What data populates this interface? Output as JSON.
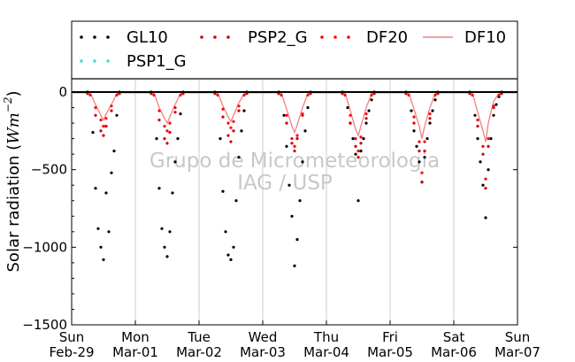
{
  "chart_data": {
    "type": "scatter",
    "title": "",
    "xlabel": "",
    "ylabel": "Solar radiation (Wm⁻²)",
    "ylabel_parts": {
      "prefix": "Solar radiation (",
      "unit_base": "Wm",
      "unit_exp": "−2",
      "suffix": ")"
    },
    "x_domain": [
      "2004-02-29 00:00",
      "2004-03-07 00:00"
    ],
    "ylim": [
      -1500,
      80
    ],
    "yticks": [
      0,
      -500,
      -1000,
      -1500
    ],
    "ytick_labels": [
      "0",
      "−500",
      "−1000",
      "−1500"
    ],
    "xtick_labels": [
      {
        "day": "Sun",
        "date": "Feb-29"
      },
      {
        "day": "Mon",
        "date": "Mar-01"
      },
      {
        "day": "Tue",
        "date": "Mar-02"
      },
      {
        "day": "Wed",
        "date": "Mar-03"
      },
      {
        "day": "Thu",
        "date": "Mar-04"
      },
      {
        "day": "Fri",
        "date": "Mar-05"
      },
      {
        "day": "Sat",
        "date": "Mar-06"
      },
      {
        "day": "Sun",
        "date": "Mar-07"
      }
    ],
    "grid": true,
    "legend_position": "top",
    "watermark": [
      "Grupo de Micrometeorologia",
      "IAG / USP"
    ],
    "series": [
      {
        "name": "GL10",
        "kind": "dots",
        "color": "#000000",
        "values_per_day": 12,
        "points": [
          [
            "2004-02-29 06:00",
            0
          ],
          [
            "2004-02-29 08:00",
            -260
          ],
          [
            "2004-02-29 09:00",
            -620
          ],
          [
            "2004-02-29 10:00",
            -880
          ],
          [
            "2004-02-29 11:00",
            -1000
          ],
          [
            "2004-02-29 12:00",
            -1080
          ],
          [
            "2004-02-29 13:00",
            -650
          ],
          [
            "2004-02-29 14:00",
            -900
          ],
          [
            "2004-02-29 15:00",
            -520
          ],
          [
            "2004-02-29 16:00",
            -380
          ],
          [
            "2004-02-29 17:00",
            -150
          ],
          [
            "2004-02-29 18:00",
            0
          ],
          [
            "2004-03-01 06:00",
            0
          ],
          [
            "2004-03-01 08:00",
            -300
          ],
          [
            "2004-03-01 09:00",
            -620
          ],
          [
            "2004-03-01 10:00",
            -880
          ],
          [
            "2004-03-01 11:00",
            -1000
          ],
          [
            "2004-03-01 12:00",
            -1060
          ],
          [
            "2004-03-01 13:00",
            -900
          ],
          [
            "2004-03-01 14:00",
            -650
          ],
          [
            "2004-03-01 15:00",
            -450
          ],
          [
            "2004-03-01 16:00",
            -300
          ],
          [
            "2004-03-01 17:00",
            -140
          ],
          [
            "2004-03-01 18:00",
            0
          ],
          [
            "2004-03-02 06:00",
            0
          ],
          [
            "2004-03-02 08:00",
            -300
          ],
          [
            "2004-03-02 09:00",
            -640
          ],
          [
            "2004-03-02 10:00",
            -900
          ],
          [
            "2004-03-02 11:00",
            -1050
          ],
          [
            "2004-03-02 12:00",
            -1080
          ],
          [
            "2004-03-02 13:00",
            -1000
          ],
          [
            "2004-03-02 14:00",
            -700
          ],
          [
            "2004-03-02 15:00",
            -420
          ],
          [
            "2004-03-02 16:00",
            -250
          ],
          [
            "2004-03-02 17:00",
            -120
          ],
          [
            "2004-03-02 18:00",
            0
          ],
          [
            "2004-03-03 06:00",
            0
          ],
          [
            "2004-03-03 08:00",
            -150
          ],
          [
            "2004-03-03 09:00",
            -350
          ],
          [
            "2004-03-03 10:00",
            -600
          ],
          [
            "2004-03-03 11:00",
            -800
          ],
          [
            "2004-03-03 12:00",
            -1120
          ],
          [
            "2004-03-03 13:00",
            -950
          ],
          [
            "2004-03-03 14:00",
            -700
          ],
          [
            "2004-03-03 15:00",
            -450
          ],
          [
            "2004-03-03 16:00",
            -250
          ],
          [
            "2004-03-03 17:00",
            -100
          ],
          [
            "2004-03-03 18:00",
            0
          ],
          [
            "2004-03-04 06:00",
            0
          ],
          [
            "2004-03-04 08:00",
            -100
          ],
          [
            "2004-03-04 09:00",
            -200
          ],
          [
            "2004-03-04 10:00",
            -300
          ],
          [
            "2004-03-04 11:00",
            -400
          ],
          [
            "2004-03-04 12:00",
            -700
          ],
          [
            "2004-03-04 13:00",
            -380
          ],
          [
            "2004-03-04 14:00",
            -300
          ],
          [
            "2004-03-04 15:00",
            -200
          ],
          [
            "2004-03-04 16:00",
            -120
          ],
          [
            "2004-03-04 17:00",
            -50
          ],
          [
            "2004-03-04 18:00",
            0
          ],
          [
            "2004-03-05 06:00",
            0
          ],
          [
            "2004-03-05 08:00",
            -120
          ],
          [
            "2004-03-05 09:00",
            -250
          ],
          [
            "2004-03-05 10:00",
            -350
          ],
          [
            "2004-03-05 11:00",
            -450
          ],
          [
            "2004-03-05 12:00",
            -580
          ],
          [
            "2004-03-05 13:00",
            -420
          ],
          [
            "2004-03-05 14:00",
            -300
          ],
          [
            "2004-03-05 15:00",
            -200
          ],
          [
            "2004-03-05 16:00",
            -120
          ],
          [
            "2004-03-05 17:00",
            -50
          ],
          [
            "2004-03-05 18:00",
            0
          ],
          [
            "2004-03-06 06:00",
            0
          ],
          [
            "2004-03-06 08:00",
            -150
          ],
          [
            "2004-03-06 09:00",
            -300
          ],
          [
            "2004-03-06 10:00",
            -450
          ],
          [
            "2004-03-06 11:00",
            -600
          ],
          [
            "2004-03-06 12:00",
            -810
          ],
          [
            "2004-03-06 13:00",
            -500
          ],
          [
            "2004-03-06 14:00",
            -300
          ],
          [
            "2004-03-06 15:00",
            -150
          ],
          [
            "2004-03-06 16:00",
            -80
          ],
          [
            "2004-03-06 17:00",
            -30
          ],
          [
            "2004-03-06 18:00",
            0
          ]
        ]
      },
      {
        "name": "PSP2_G",
        "kind": "dots",
        "color": "#cc0000",
        "points": [
          [
            "2004-02-29 06:00",
            -10
          ],
          [
            "2004-02-29 09:00",
            -150
          ],
          [
            "2004-02-29 11:00",
            -250
          ],
          [
            "2004-02-29 12:00",
            -280
          ],
          [
            "2004-02-29 13:00",
            -220
          ],
          [
            "2004-02-29 15:00",
            -120
          ],
          [
            "2004-02-29 18:00",
            -10
          ],
          [
            "2004-03-01 06:00",
            -10
          ],
          [
            "2004-03-01 09:00",
            -180
          ],
          [
            "2004-03-01 11:00",
            -300
          ],
          [
            "2004-03-01 12:00",
            -330
          ],
          [
            "2004-03-01 13:00",
            -260
          ],
          [
            "2004-03-01 15:00",
            -130
          ],
          [
            "2004-03-01 18:00",
            -10
          ],
          [
            "2004-03-02 06:00",
            -10
          ],
          [
            "2004-03-02 09:00",
            -160
          ],
          [
            "2004-03-02 11:00",
            -280
          ],
          [
            "2004-03-02 12:00",
            -320
          ],
          [
            "2004-03-02 13:00",
            -250
          ],
          [
            "2004-03-02 15:00",
            -120
          ],
          [
            "2004-03-02 18:00",
            -10
          ],
          [
            "2004-03-03 06:00",
            -10
          ],
          [
            "2004-03-03 09:00",
            -200
          ],
          [
            "2004-03-03 11:00",
            -330
          ],
          [
            "2004-03-03 12:00",
            -380
          ],
          [
            "2004-03-03 13:00",
            -300
          ],
          [
            "2004-03-03 15:00",
            -150
          ],
          [
            "2004-03-03 18:00",
            -10
          ],
          [
            "2004-03-04 06:00",
            -10
          ],
          [
            "2004-03-04 09:00",
            -200
          ],
          [
            "2004-03-04 11:00",
            -350
          ],
          [
            "2004-03-04 12:00",
            -420
          ],
          [
            "2004-03-04 13:00",
            -330
          ],
          [
            "2004-03-04 15:00",
            -170
          ],
          [
            "2004-03-04 18:00",
            -10
          ],
          [
            "2004-03-05 06:00",
            -10
          ],
          [
            "2004-03-05 09:00",
            -200
          ],
          [
            "2004-03-05 11:00",
            -380
          ],
          [
            "2004-03-05 12:00",
            -580
          ],
          [
            "2004-03-05 13:00",
            -380
          ],
          [
            "2004-03-05 15:00",
            -170
          ],
          [
            "2004-03-05 18:00",
            -10
          ],
          [
            "2004-03-06 06:00",
            -10
          ],
          [
            "2004-03-06 09:00",
            -220
          ],
          [
            "2004-03-06 11:00",
            -400
          ],
          [
            "2004-03-06 12:00",
            -620
          ],
          [
            "2004-03-06 13:00",
            -350
          ],
          [
            "2004-03-06 15:00",
            -100
          ],
          [
            "2004-03-06 18:00",
            -10
          ]
        ]
      },
      {
        "name": "DF20",
        "kind": "dots",
        "color": "#ff0000",
        "points": [
          [
            "2004-02-29 07:00",
            -20
          ],
          [
            "2004-02-29 09:00",
            -100
          ],
          [
            "2004-02-29 11:00",
            -180
          ],
          [
            "2004-02-29 12:00",
            -220
          ],
          [
            "2004-02-29 13:00",
            -170
          ],
          [
            "2004-02-29 15:00",
            -90
          ],
          [
            "2004-02-29 17:00",
            -20
          ],
          [
            "2004-03-01 07:00",
            -20
          ],
          [
            "2004-03-01 09:00",
            -120
          ],
          [
            "2004-03-01 11:00",
            -220
          ],
          [
            "2004-03-01 12:00",
            -250
          ],
          [
            "2004-03-01 13:00",
            -200
          ],
          [
            "2004-03-01 15:00",
            -100
          ],
          [
            "2004-03-01 17:00",
            -20
          ],
          [
            "2004-03-02 07:00",
            -20
          ],
          [
            "2004-03-02 09:00",
            -110
          ],
          [
            "2004-03-02 11:00",
            -200
          ],
          [
            "2004-03-02 12:00",
            -230
          ],
          [
            "2004-03-02 13:00",
            -190
          ],
          [
            "2004-03-02 15:00",
            -90
          ],
          [
            "2004-03-02 17:00",
            -20
          ],
          [
            "2004-03-03 07:00",
            -20
          ],
          [
            "2004-03-03 09:00",
            -150
          ],
          [
            "2004-03-03 11:00",
            -300
          ],
          [
            "2004-03-03 12:00",
            -350
          ],
          [
            "2004-03-03 13:00",
            -280
          ],
          [
            "2004-03-03 15:00",
            -140
          ],
          [
            "2004-03-03 17:00",
            -20
          ],
          [
            "2004-03-04 07:00",
            -20
          ],
          [
            "2004-03-04 09:00",
            -150
          ],
          [
            "2004-03-04 11:00",
            -300
          ],
          [
            "2004-03-04 12:00",
            -380
          ],
          [
            "2004-03-04 13:00",
            -290
          ],
          [
            "2004-03-04 15:00",
            -140
          ],
          [
            "2004-03-04 17:00",
            -20
          ],
          [
            "2004-03-05 07:00",
            -20
          ],
          [
            "2004-03-05 09:00",
            -160
          ],
          [
            "2004-03-05 11:00",
            -320
          ],
          [
            "2004-03-05 12:00",
            -520
          ],
          [
            "2004-03-05 13:00",
            -320
          ],
          [
            "2004-03-05 15:00",
            -140
          ],
          [
            "2004-03-05 17:00",
            -20
          ],
          [
            "2004-03-06 07:00",
            -20
          ],
          [
            "2004-03-06 09:00",
            -180
          ],
          [
            "2004-03-06 11:00",
            -350
          ],
          [
            "2004-03-06 12:00",
            -560
          ],
          [
            "2004-03-06 13:00",
            -300
          ],
          [
            "2004-03-06 15:00",
            -90
          ],
          [
            "2004-03-06 17:00",
            -20
          ]
        ]
      },
      {
        "name": "DF10",
        "kind": "line",
        "color": "#f08080",
        "points": [
          [
            "2004-02-29 00:00",
            -5
          ],
          [
            "2004-02-29 07:00",
            -5
          ],
          [
            "2004-02-29 09:00",
            -80
          ],
          [
            "2004-02-29 11:00",
            -150
          ],
          [
            "2004-02-29 12:00",
            -180
          ],
          [
            "2004-02-29 13:00",
            -140
          ],
          [
            "2004-02-29 15:00",
            -80
          ],
          [
            "2004-02-29 17:00",
            -10
          ],
          [
            "2004-02-29 18:00",
            -5
          ],
          [
            "2004-03-01 07:00",
            -5
          ],
          [
            "2004-03-01 09:00",
            -100
          ],
          [
            "2004-03-01 11:00",
            -170
          ],
          [
            "2004-03-01 12:00",
            -200
          ],
          [
            "2004-03-01 13:00",
            -160
          ],
          [
            "2004-03-01 15:00",
            -80
          ],
          [
            "2004-03-01 17:00",
            -10
          ],
          [
            "2004-03-01 18:00",
            -5
          ],
          [
            "2004-03-02 07:00",
            -5
          ],
          [
            "2004-03-02 09:00",
            -90
          ],
          [
            "2004-03-02 11:00",
            -160
          ],
          [
            "2004-03-02 12:00",
            -190
          ],
          [
            "2004-03-02 13:00",
            -150
          ],
          [
            "2004-03-02 15:00",
            -70
          ],
          [
            "2004-03-02 17:00",
            -10
          ],
          [
            "2004-03-02 18:00",
            -5
          ],
          [
            "2004-03-03 07:00",
            -5
          ],
          [
            "2004-03-03 09:00",
            -110
          ],
          [
            "2004-03-03 11:00",
            -220
          ],
          [
            "2004-03-03 12:00",
            -260
          ],
          [
            "2004-03-03 13:00",
            -210
          ],
          [
            "2004-03-03 15:00",
            -100
          ],
          [
            "2004-03-03 17:00",
            -10
          ],
          [
            "2004-03-03 18:00",
            -5
          ],
          [
            "2004-03-04 07:00",
            -5
          ],
          [
            "2004-03-04 09:00",
            -120
          ],
          [
            "2004-03-04 11:00",
            -240
          ],
          [
            "2004-03-04 12:00",
            -280
          ],
          [
            "2004-03-04 13:00",
            -220
          ],
          [
            "2004-03-04 15:00",
            -100
          ],
          [
            "2004-03-04 17:00",
            -10
          ],
          [
            "2004-03-04 18:00",
            -5
          ],
          [
            "2004-03-05 07:00",
            -5
          ],
          [
            "2004-03-05 09:00",
            -110
          ],
          [
            "2004-03-05 11:00",
            -220
          ],
          [
            "2004-03-05 12:00",
            -300
          ],
          [
            "2004-03-05 13:00",
            -220
          ],
          [
            "2004-03-05 15:00",
            -100
          ],
          [
            "2004-03-05 17:00",
            -10
          ],
          [
            "2004-03-05 18:00",
            -5
          ],
          [
            "2004-03-06 07:00",
            -5
          ],
          [
            "2004-03-06 09:00",
            -130
          ],
          [
            "2004-03-06 11:00",
            -250
          ],
          [
            "2004-03-06 12:00",
            -320
          ],
          [
            "2004-03-06 13:00",
            -200
          ],
          [
            "2004-03-06 15:00",
            -60
          ],
          [
            "2004-03-06 17:00",
            -10
          ],
          [
            "2004-03-06 18:00",
            -5
          ],
          [
            "2004-03-07 00:00",
            -5
          ]
        ]
      },
      {
        "name": "PSP1_G",
        "kind": "dots",
        "color": "#40e0d0",
        "points": []
      }
    ]
  }
}
